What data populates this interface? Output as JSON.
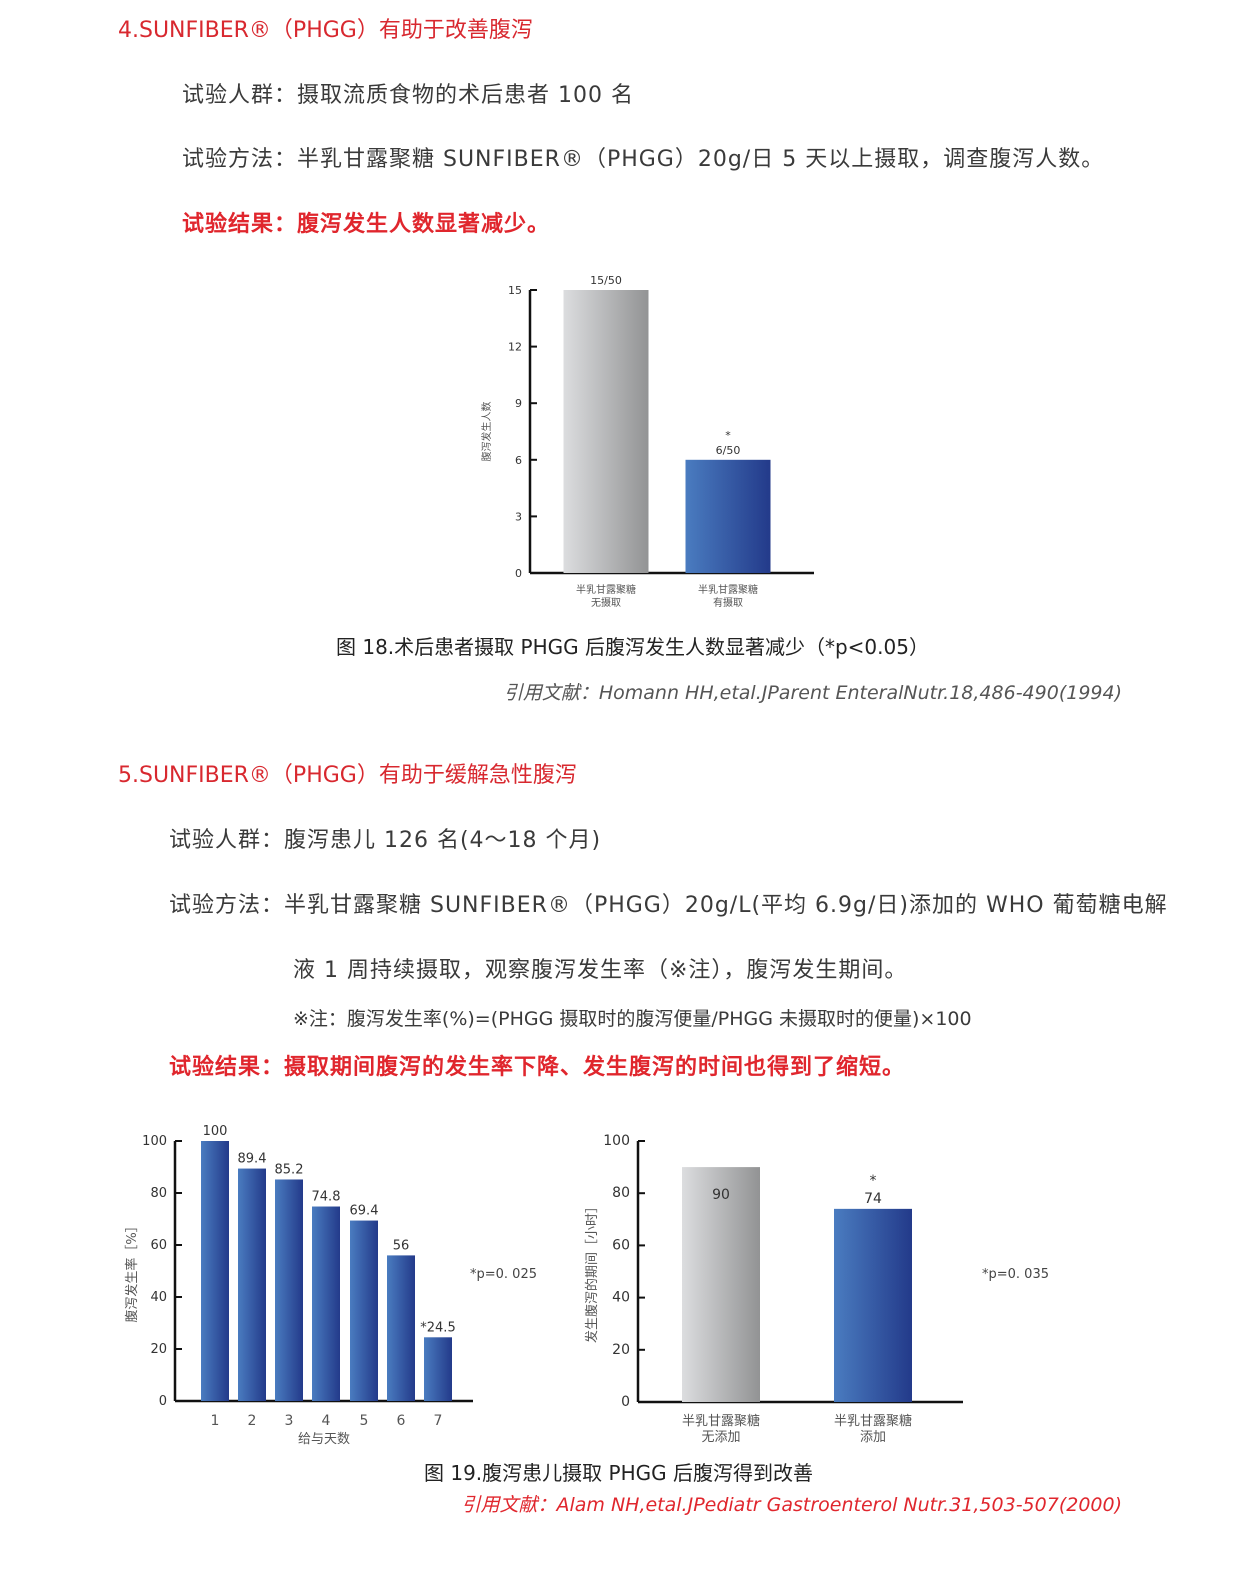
{
  "section4": {
    "heading": "4.SUNFIBER®（PHGG）有助于改善腹泻",
    "subjects": "试验人群：摄取流质食物的术后患者 100 名",
    "method": "试验方法：半乳甘露聚糖 SUNFIBER®（PHGG）20g/日 5 天以上摄取，调查腹泻人数。",
    "result": "试验结果：腹泻发生人数显著减少。",
    "caption": "图 18.术后患者摄取 PHGG 后腹泻发生人数显著减少（*p<0.05）",
    "citation": "引用文献：Homann HH,etal.JParent EnteralNutr.18,486-490(1994)"
  },
  "section5": {
    "heading": "5.SUNFIBER®（PHGG）有助于缓解急性腹泻",
    "subjects": "试验人群：腹泻患儿 126 名(4～18 个月)",
    "method_line1": "试验方法：半乳甘露聚糖 SUNFIBER®（PHGG）20g/L(平均 6.9g/日)添加的 WHO 葡萄糖电解",
    "method_line2": "液 1 周持续摄取，观察腹泻发生率（※注），腹泻发生期间。",
    "note": "※注：腹泻发生率(%)=(PHGG 摄取时的腹泻便量/PHGG 未摄取时的便量)×100",
    "result": "试验结果：摄取期间腹泻的发生率下降、发生腹泻的时间也得到了缩短。",
    "caption": "图 19.腹泻患儿摄取 PHGG 后腹泻得到改善",
    "citation": "引用文献：Alam NH,etal.JPediatr Gastroenterol Nutr.31,503-507(2000)"
  },
  "colors": {
    "heading": "#d8282f",
    "bar_blue": "#2b4a9a",
    "bar_gray": "#b0b2b4"
  },
  "chart_data": [
    {
      "type": "bar",
      "ylabel": "腹泻发生人数",
      "xlabel": "",
      "ylim": [
        0,
        15
      ],
      "yticks": [
        0,
        3,
        6,
        9,
        12,
        15
      ],
      "categories": [
        "半乳甘露聚糖\n无摄取",
        "半乳甘露聚糖\n有摄取"
      ],
      "values": [
        15,
        6
      ],
      "data_labels": [
        "15/50",
        "*\n6/50"
      ],
      "bar_colors": [
        "gray",
        "blue"
      ]
    },
    {
      "type": "bar",
      "ylabel": "腹泻发生率［%］",
      "xlabel": "给与天数",
      "ylim": [
        0,
        100
      ],
      "yticks": [
        0,
        20,
        40,
        60,
        80,
        100
      ],
      "categories": [
        "1",
        "2",
        "3",
        "4",
        "5",
        "6",
        "7"
      ],
      "values": [
        100,
        89.4,
        85.2,
        74.8,
        69.4,
        56,
        24.5
      ],
      "data_labels": [
        "100",
        "89.4",
        "85.2",
        "74.8",
        "69.4",
        "56",
        "*24.5"
      ],
      "annotation": "*p=0. 025"
    },
    {
      "type": "bar",
      "ylabel": "发生腹泻的期间［小时］",
      "xlabel": "",
      "ylim": [
        0,
        100
      ],
      "yticks": [
        0,
        20,
        40,
        60,
        80,
        100
      ],
      "categories": [
        "半乳甘露聚糖\n无添加",
        "半乳甘露聚糖\n添加"
      ],
      "values": [
        90,
        74
      ],
      "data_labels": [
        "90",
        "*\n74"
      ],
      "bar_colors": [
        "gray",
        "blue"
      ],
      "annotation": "*p=0. 035"
    }
  ]
}
